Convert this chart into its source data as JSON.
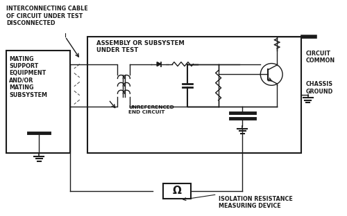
{
  "bg_color": "#ffffff",
  "line_color": "#1a1a1a",
  "labels": {
    "interconnect": "INTERCONNECTING CABLE\nOF CIRCUIT UNDER TEST\nDISCONNECTED",
    "mating": "MATING\nSUPPORT\nEQUIPMENT\nAND/OR\nMATING\nSUBSYSTEM",
    "assembly": "ASSEMBLY OR SUBSYSTEM\nUNDER TEST",
    "unreferenced": "UNREFERENCED\nEND CIRCUIT",
    "circuit_common": "CIRCUIT\nCOMMON",
    "chassis_ground": "CHASSIS\nGROUND",
    "omega": "Ω",
    "isolation": "ISOLATION RESISTANCE\nMEASURING DEVICE"
  },
  "figsize": [
    5.0,
    3.12
  ],
  "dpi": 100
}
